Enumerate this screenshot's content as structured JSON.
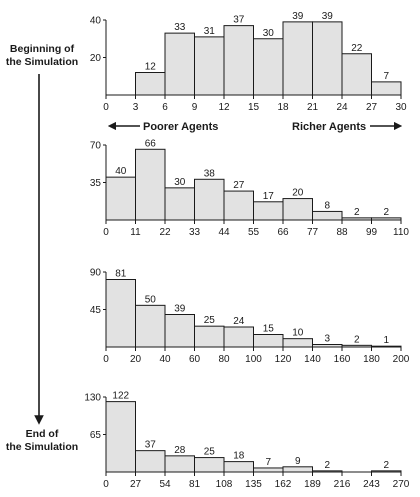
{
  "labels": {
    "beginning": [
      "Beginning of",
      "the Simulation"
    ],
    "end": [
      "End of",
      "the Simulation"
    ],
    "poorer": "Poorer Agents",
    "richer": "Richer Agents"
  },
  "colors": {
    "bar_fill": "#e2e2e2",
    "stroke": "#1a1a1a"
  },
  "chart_data": [
    {
      "type": "bar",
      "x_ticks": [
        0,
        3,
        6,
        9,
        12,
        15,
        18,
        21,
        24,
        27,
        30
      ],
      "bins": [
        {
          "from": 3,
          "to": 6,
          "value": 12
        },
        {
          "from": 6,
          "to": 9,
          "value": 33
        },
        {
          "from": 9,
          "to": 12,
          "value": 31
        },
        {
          "from": 12,
          "to": 15,
          "value": 37
        },
        {
          "from": 15,
          "to": 18,
          "value": 30
        },
        {
          "from": 18,
          "to": 21,
          "value": 39
        },
        {
          "from": 21,
          "to": 24,
          "value": 39
        },
        {
          "from": 24,
          "to": 27,
          "value": 22
        },
        {
          "from": 27,
          "to": 30,
          "value": 7
        }
      ],
      "xlim": [
        0,
        30
      ],
      "y_ticks": [
        20,
        40
      ],
      "ylim": [
        0,
        40
      ]
    },
    {
      "type": "bar",
      "x_ticks": [
        0,
        11,
        22,
        33,
        44,
        55,
        66,
        77,
        88,
        99,
        110
      ],
      "bins": [
        {
          "from": 0,
          "to": 11,
          "value": 40
        },
        {
          "from": 11,
          "to": 22,
          "value": 66
        },
        {
          "from": 22,
          "to": 33,
          "value": 30
        },
        {
          "from": 33,
          "to": 44,
          "value": 38
        },
        {
          "from": 44,
          "to": 55,
          "value": 27
        },
        {
          "from": 55,
          "to": 66,
          "value": 17
        },
        {
          "from": 66,
          "to": 77,
          "value": 20
        },
        {
          "from": 77,
          "to": 88,
          "value": 8
        },
        {
          "from": 88,
          "to": 99,
          "value": 2
        },
        {
          "from": 99,
          "to": 110,
          "value": 2
        }
      ],
      "xlim": [
        0,
        110
      ],
      "y_ticks": [
        35,
        70
      ],
      "ylim": [
        0,
        70
      ]
    },
    {
      "type": "bar",
      "x_ticks": [
        0,
        20,
        40,
        60,
        80,
        100,
        120,
        140,
        160,
        180,
        200
      ],
      "bins": [
        {
          "from": 0,
          "to": 20,
          "value": 81
        },
        {
          "from": 20,
          "to": 40,
          "value": 50
        },
        {
          "from": 40,
          "to": 60,
          "value": 39
        },
        {
          "from": 60,
          "to": 80,
          "value": 25
        },
        {
          "from": 80,
          "to": 100,
          "value": 24
        },
        {
          "from": 100,
          "to": 120,
          "value": 15
        },
        {
          "from": 120,
          "to": 140,
          "value": 10
        },
        {
          "from": 140,
          "to": 160,
          "value": 3
        },
        {
          "from": 160,
          "to": 180,
          "value": 2
        },
        {
          "from": 180,
          "to": 200,
          "value": 1
        }
      ],
      "xlim": [
        0,
        200
      ],
      "y_ticks": [
        45,
        90
      ],
      "ylim": [
        0,
        90
      ]
    },
    {
      "type": "bar",
      "x_ticks": [
        0,
        27,
        54,
        81,
        108,
        135,
        162,
        189,
        216,
        243,
        270
      ],
      "bins": [
        {
          "from": 0,
          "to": 27,
          "value": 122
        },
        {
          "from": 27,
          "to": 54,
          "value": 37
        },
        {
          "from": 54,
          "to": 81,
          "value": 28
        },
        {
          "from": 81,
          "to": 108,
          "value": 25
        },
        {
          "from": 108,
          "to": 135,
          "value": 18
        },
        {
          "from": 135,
          "to": 162,
          "value": 7
        },
        {
          "from": 162,
          "to": 189,
          "value": 9
        },
        {
          "from": 189,
          "to": 216,
          "value": 2
        },
        {
          "from": 216,
          "to": 243,
          "value": 0
        },
        {
          "from": 243,
          "to": 270,
          "value": 2
        }
      ],
      "xlim": [
        0,
        270
      ],
      "y_ticks": [
        65,
        130
      ],
      "ylim": [
        0,
        130
      ]
    }
  ]
}
